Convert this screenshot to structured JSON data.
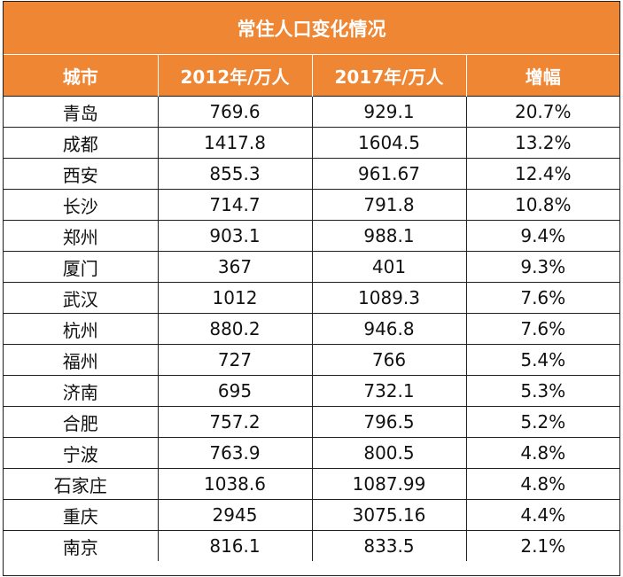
{
  "title": "常住人口变化情况",
  "headers": [
    "城市",
    "2012年/万人",
    "2017年/万人",
    "增幅"
  ],
  "rows": [
    [
      "青岛",
      "769.6",
      "929.1",
      "20.7%"
    ],
    [
      "成都",
      "1417.8",
      "1604.5",
      "13.2%"
    ],
    [
      "西安",
      "855.3",
      "961.67",
      "12.4%"
    ],
    [
      "长沙",
      "714.7",
      "791.8",
      "10.8%"
    ],
    [
      "郑州",
      "903.1",
      "988.1",
      "9.4%"
    ],
    [
      "厦门",
      "367",
      "401",
      "9.3%"
    ],
    [
      "武汉",
      "1012",
      "1089.3",
      "7.6%"
    ],
    [
      "杭州",
      "880.2",
      "946.8",
      "7.6%"
    ],
    [
      "福州",
      "727",
      "766",
      "5.4%"
    ],
    [
      "济南",
      "695",
      "732.1",
      "5.3%"
    ],
    [
      "合肥",
      "757.2",
      "796.5",
      "5.2%"
    ],
    [
      "宁波",
      "763.9",
      "800.5",
      "4.8%"
    ],
    [
      "石家庄",
      "1038.6",
      "1087.99",
      "4.8%"
    ],
    [
      "重庆",
      "2945",
      "3075.16",
      "4.4%"
    ],
    [
      "南京",
      "816.1",
      "833.5",
      "2.1%"
    ]
  ],
  "colors": {
    "header_bg": "#ee8633",
    "header_text": "#ffffff",
    "grid": "#1f1f1f"
  }
}
